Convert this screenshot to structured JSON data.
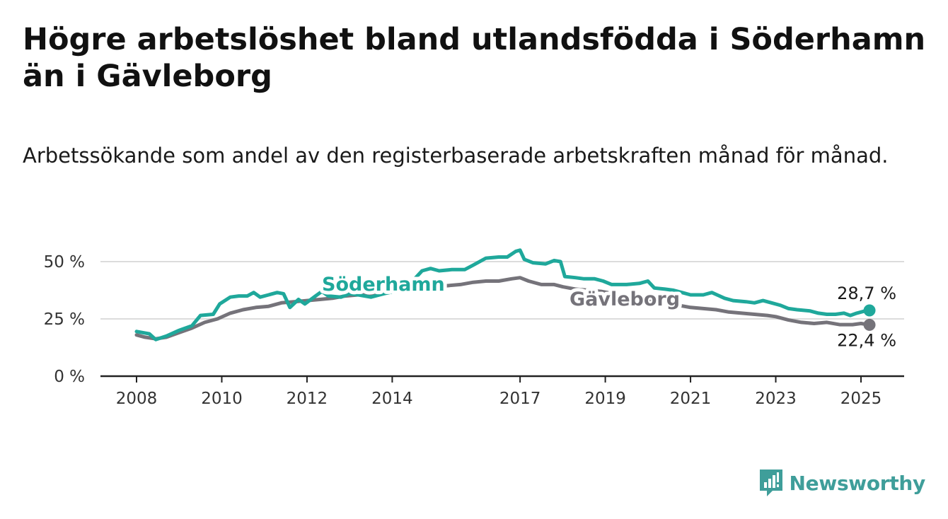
{
  "title": "Högre arbetslöshet bland utlandsfödda i Söderhamn än i Gävleborg",
  "subtitle": "Arbetssökande som andel av den registerbaserade arbetskraften månad för månad.",
  "brand": "Newsworthy",
  "colors": {
    "soderhamn": "#1fa89b",
    "gavleborg": "#75737a",
    "grid": "#dcdcdc",
    "axis": "#222222",
    "brand": "#3f9e9a"
  },
  "chart_data": {
    "type": "line",
    "title": "Högre arbetslöshet bland utlandsfödda i Söderhamn än i Gävleborg",
    "xlabel": "",
    "ylabel": "",
    "xlim": [
      2008,
      2025.3
    ],
    "ylim": [
      0,
      55
    ],
    "x_ticks": [
      "2008",
      "2010",
      "2012",
      "2014",
      "2017",
      "2019",
      "2021",
      "2023",
      "2025"
    ],
    "y_ticks": [
      "0 %",
      "25 %",
      "50 %"
    ],
    "y_tick_values": [
      0,
      25,
      50
    ],
    "grid": true,
    "series": [
      {
        "name": "Söderhamn",
        "end_label": "28,7 %",
        "points": [
          [
            2008.0,
            19.5
          ],
          [
            2008.3,
            18.5
          ],
          [
            2008.45,
            16.0
          ],
          [
            2008.7,
            17.5
          ],
          [
            2009.0,
            20.0
          ],
          [
            2009.3,
            22.0
          ],
          [
            2009.5,
            26.5
          ],
          [
            2009.8,
            27.0
          ],
          [
            2009.95,
            31.5
          ],
          [
            2010.2,
            34.5
          ],
          [
            2010.4,
            35.0
          ],
          [
            2010.6,
            35.0
          ],
          [
            2010.75,
            36.5
          ],
          [
            2010.9,
            34.5
          ],
          [
            2011.1,
            35.5
          ],
          [
            2011.3,
            36.5
          ],
          [
            2011.45,
            36.0
          ],
          [
            2011.6,
            30.0
          ],
          [
            2011.8,
            33.5
          ],
          [
            2011.95,
            31.5
          ],
          [
            2012.2,
            35.0
          ],
          [
            2012.35,
            37.0
          ],
          [
            2012.5,
            35.0
          ],
          [
            2012.8,
            34.5
          ],
          [
            2013.0,
            36.0
          ],
          [
            2013.2,
            35.5
          ],
          [
            2013.5,
            34.5
          ],
          [
            2013.8,
            36.0
          ],
          [
            2014.3,
            38.0
          ],
          [
            2014.7,
            46.0
          ],
          [
            2014.9,
            47.0
          ],
          [
            2015.1,
            46.0
          ],
          [
            2015.4,
            46.5
          ],
          [
            2015.7,
            46.5
          ],
          [
            2015.9,
            48.5
          ],
          [
            2016.2,
            51.5
          ],
          [
            2016.5,
            52.0
          ],
          [
            2016.7,
            52.0
          ],
          [
            2016.9,
            54.5
          ],
          [
            2017.0,
            55.0
          ],
          [
            2017.1,
            51.0
          ],
          [
            2017.3,
            49.5
          ],
          [
            2017.6,
            49.0
          ],
          [
            2017.8,
            50.5
          ],
          [
            2017.95,
            50.0
          ],
          [
            2018.05,
            43.5
          ],
          [
            2018.3,
            43.0
          ],
          [
            2018.5,
            42.5
          ],
          [
            2018.75,
            42.5
          ],
          [
            2018.95,
            41.5
          ],
          [
            2019.15,
            40.0
          ],
          [
            2019.5,
            40.0
          ],
          [
            2019.8,
            40.5
          ],
          [
            2020.0,
            41.5
          ],
          [
            2020.15,
            38.5
          ],
          [
            2020.4,
            38.0
          ],
          [
            2020.6,
            37.5
          ],
          [
            2020.8,
            36.5
          ],
          [
            2021.0,
            35.5
          ],
          [
            2021.3,
            35.5
          ],
          [
            2021.5,
            36.5
          ],
          [
            2021.8,
            34.0
          ],
          [
            2022.0,
            33.0
          ],
          [
            2022.3,
            32.5
          ],
          [
            2022.5,
            32.0
          ],
          [
            2022.7,
            33.0
          ],
          [
            2022.9,
            32.0
          ],
          [
            2023.1,
            31.0
          ],
          [
            2023.3,
            29.5
          ],
          [
            2023.5,
            29.0
          ],
          [
            2023.8,
            28.5
          ],
          [
            2024.0,
            27.5
          ],
          [
            2024.2,
            27.0
          ],
          [
            2024.4,
            27.0
          ],
          [
            2024.6,
            27.5
          ],
          [
            2024.75,
            26.5
          ],
          [
            2024.9,
            27.5
          ],
          [
            2025.1,
            28.5
          ],
          [
            2025.2,
            28.7
          ]
        ]
      },
      {
        "name": "Gävleborg",
        "end_label": "22,4 %",
        "points": [
          [
            2008.0,
            18.0
          ],
          [
            2008.2,
            17.0
          ],
          [
            2008.45,
            16.3
          ],
          [
            2008.7,
            17.0
          ],
          [
            2009.0,
            19.0
          ],
          [
            2009.3,
            21.0
          ],
          [
            2009.6,
            23.5
          ],
          [
            2009.9,
            25.0
          ],
          [
            2010.2,
            27.5
          ],
          [
            2010.5,
            29.0
          ],
          [
            2010.8,
            30.0
          ],
          [
            2011.1,
            30.5
          ],
          [
            2011.4,
            32.0
          ],
          [
            2011.7,
            32.5
          ],
          [
            2012.0,
            33.0
          ],
          [
            2012.3,
            33.5
          ],
          [
            2012.6,
            34.0
          ],
          [
            2012.9,
            35.0
          ],
          [
            2013.2,
            35.5
          ],
          [
            2013.5,
            35.5
          ],
          [
            2013.8,
            36.5
          ],
          [
            2014.1,
            37.0
          ],
          [
            2014.4,
            38.0
          ],
          [
            2014.7,
            39.0
          ],
          [
            2015.0,
            39.0
          ],
          [
            2015.3,
            39.5
          ],
          [
            2015.6,
            40.0
          ],
          [
            2015.9,
            41.0
          ],
          [
            2016.2,
            41.5
          ],
          [
            2016.5,
            41.5
          ],
          [
            2016.8,
            42.5
          ],
          [
            2017.0,
            43.0
          ],
          [
            2017.2,
            41.5
          ],
          [
            2017.5,
            40.0
          ],
          [
            2017.8,
            40.0
          ],
          [
            2018.0,
            39.0
          ],
          [
            2018.3,
            38.0
          ],
          [
            2018.6,
            37.5
          ],
          [
            2018.9,
            37.0
          ],
          [
            2019.2,
            36.0
          ],
          [
            2019.5,
            35.0
          ],
          [
            2019.8,
            34.0
          ],
          [
            2020.1,
            33.0
          ],
          [
            2020.4,
            32.0
          ],
          [
            2020.7,
            31.0
          ],
          [
            2021.0,
            30.0
          ],
          [
            2021.3,
            29.5
          ],
          [
            2021.6,
            29.0
          ],
          [
            2021.9,
            28.0
          ],
          [
            2022.2,
            27.5
          ],
          [
            2022.5,
            27.0
          ],
          [
            2022.8,
            26.5
          ],
          [
            2023.0,
            26.0
          ],
          [
            2023.3,
            24.5
          ],
          [
            2023.6,
            23.5
          ],
          [
            2023.9,
            23.0
          ],
          [
            2024.2,
            23.5
          ],
          [
            2024.5,
            22.5
          ],
          [
            2024.8,
            22.5
          ],
          [
            2025.0,
            23.0
          ],
          [
            2025.2,
            22.4
          ]
        ]
      }
    ]
  }
}
